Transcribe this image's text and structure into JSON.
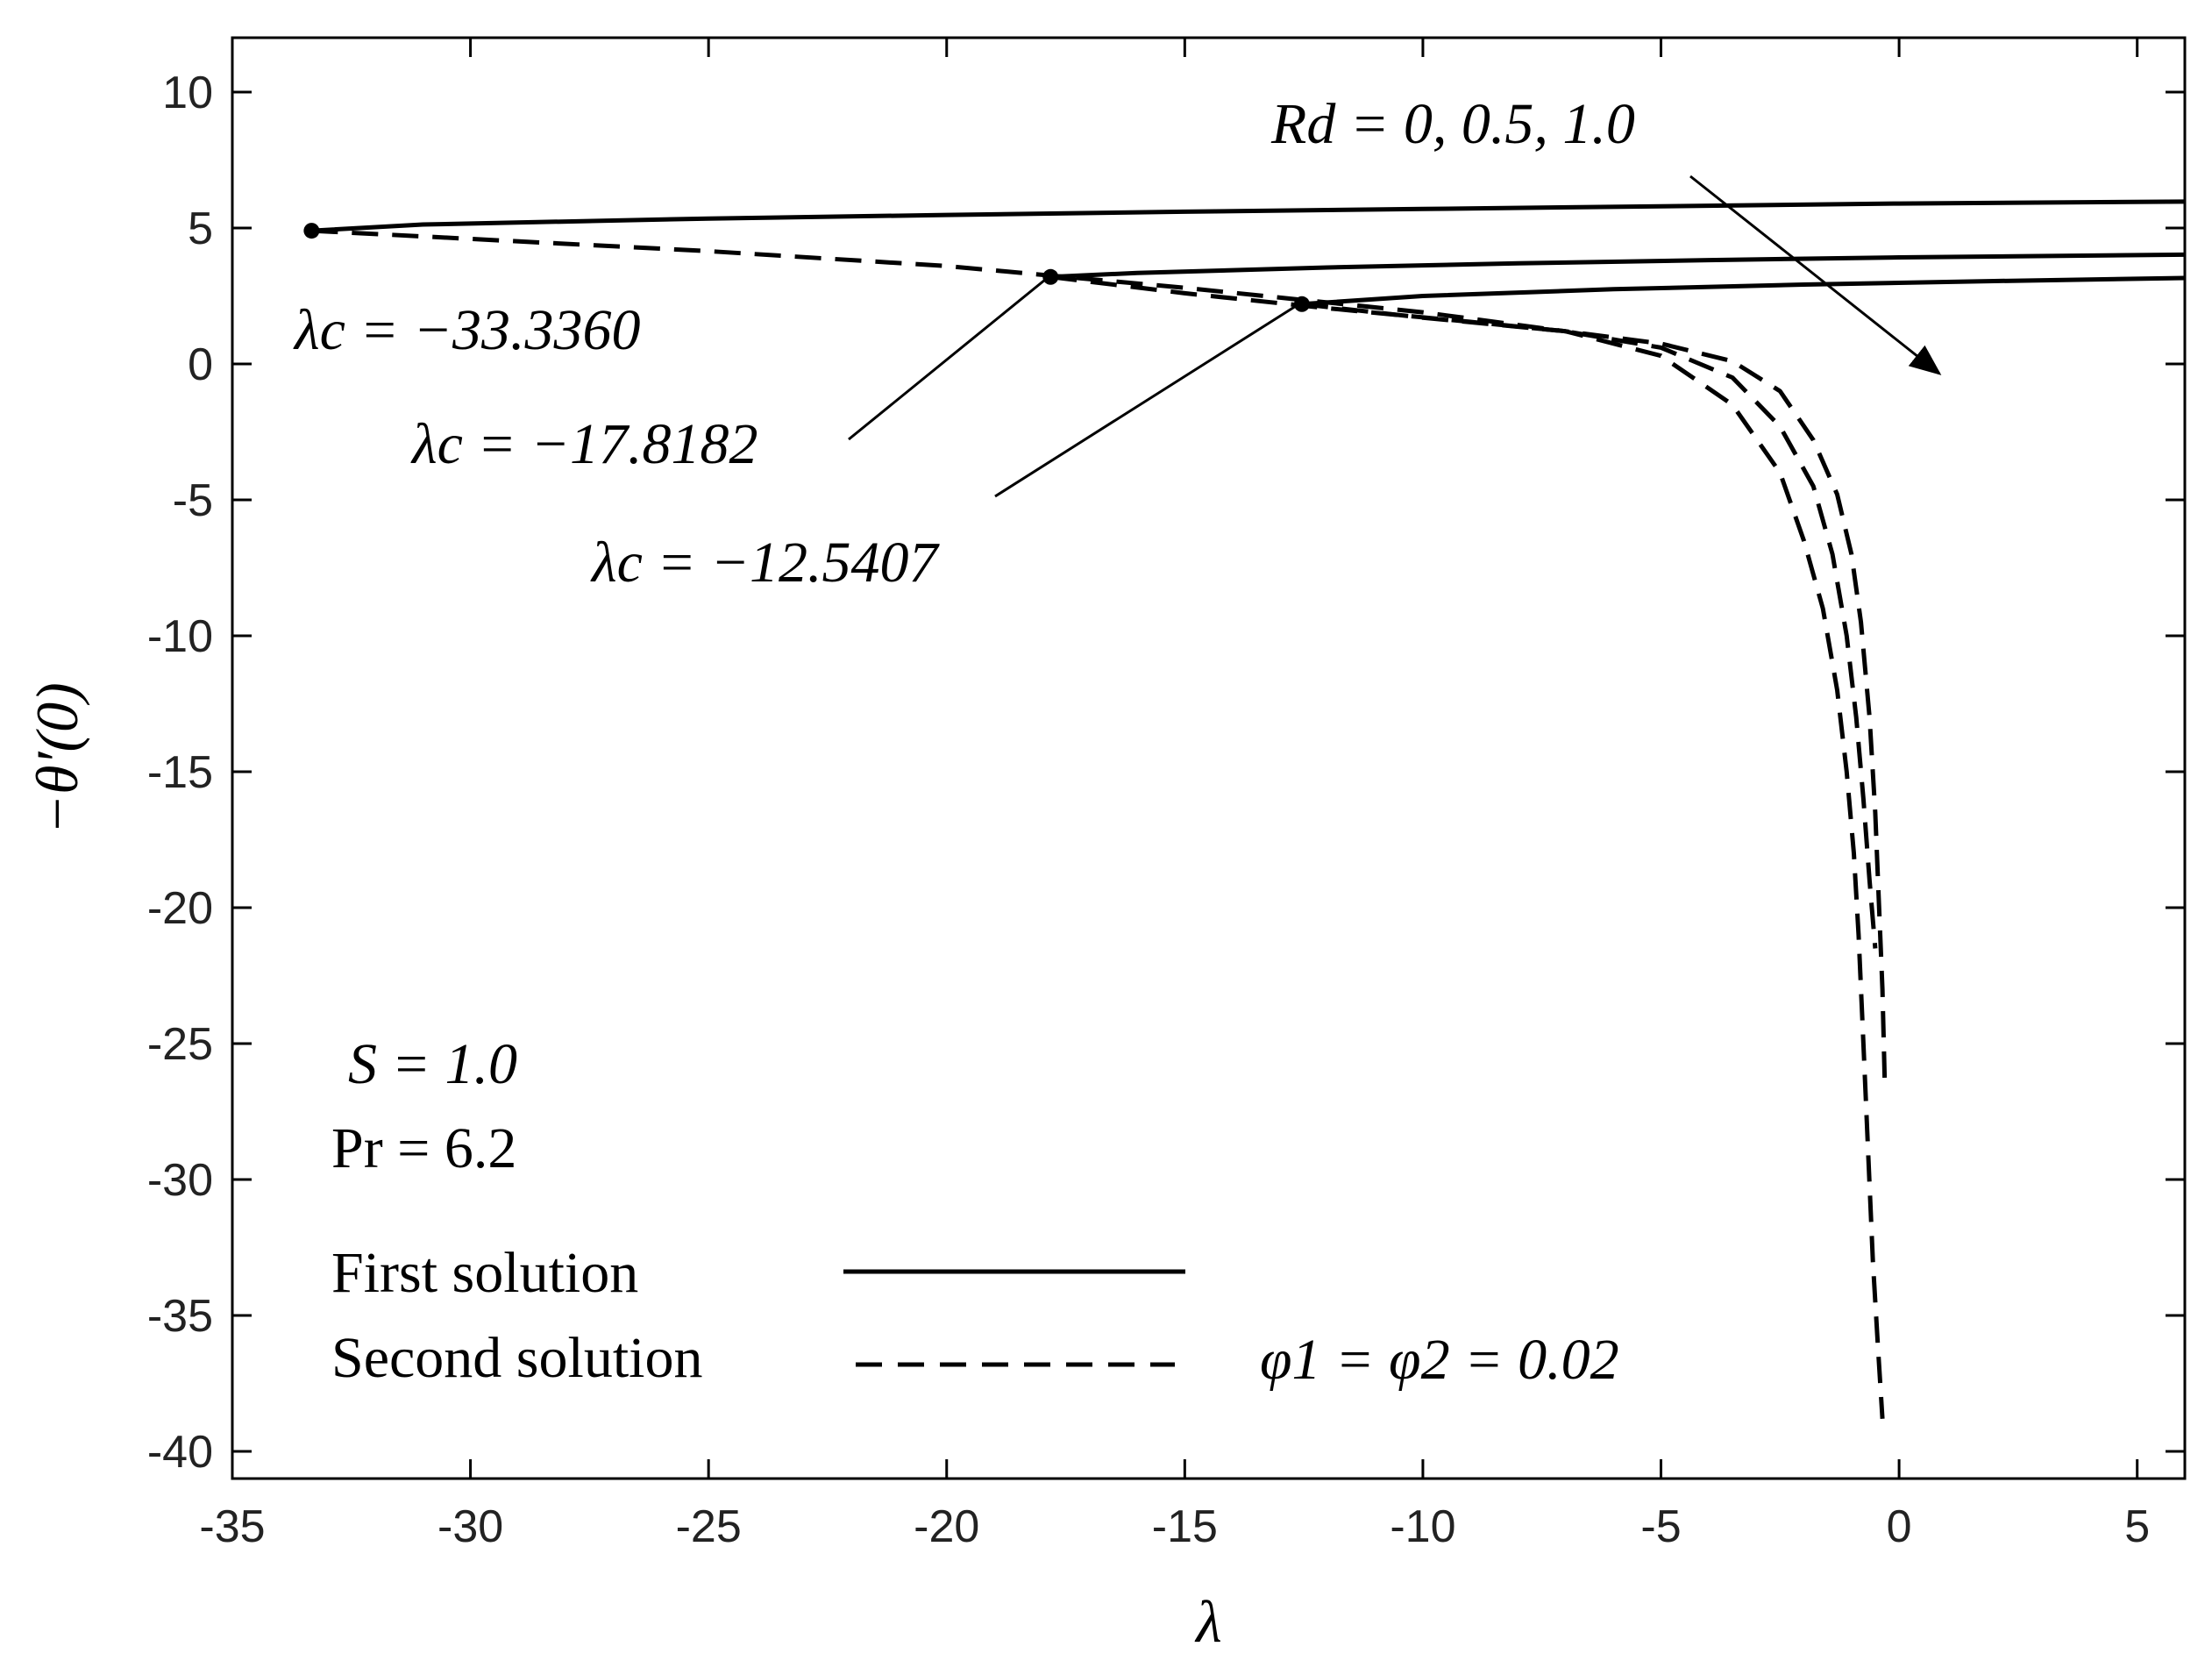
{
  "chart_data": {
    "type": "line",
    "title": "",
    "xlabel": "λ",
    "ylabel": "−θ′(0)",
    "xlim": [
      -35,
      6
    ],
    "ylim": [
      -41,
      12
    ],
    "xticks": [
      -35,
      -30,
      -25,
      -20,
      -15,
      -10,
      -5,
      0,
      5
    ],
    "yticks": [
      10,
      5,
      0,
      -5,
      -10,
      -15,
      -20,
      -25,
      -30,
      -35,
      -40
    ],
    "xtick_labels": [
      "-35",
      "-30",
      "-25",
      "-20",
      "-15",
      "-10",
      "-5",
      "0",
      "5"
    ],
    "ytick_labels": [
      "10",
      "5",
      "0",
      "-5",
      "-10",
      "-15",
      "-20",
      "-25",
      "-30",
      "-35",
      "-40"
    ],
    "grid": false,
    "series": [
      {
        "name": "First solution, Rd = 0",
        "style": "solid",
        "x": [
          -33.336,
          -31,
          -25,
          -20,
          -15,
          -10,
          -5,
          0,
          6
        ],
        "y": [
          4.9,
          5.13,
          5.35,
          5.48,
          5.6,
          5.7,
          5.8,
          5.9,
          5.97
        ]
      },
      {
        "name": "First solution, Rd = 0.5",
        "style": "solid",
        "x": [
          -17.8182,
          -16,
          -12,
          -8,
          -4,
          0,
          6
        ],
        "y": [
          3.2,
          3.35,
          3.55,
          3.7,
          3.82,
          3.92,
          4.02
        ]
      },
      {
        "name": "First solution, Rd = 1.0",
        "style": "solid",
        "x": [
          -12.5407,
          -10,
          -6,
          -2,
          2,
          6
        ],
        "y": [
          2.2,
          2.5,
          2.75,
          2.92,
          3.05,
          3.16
        ]
      },
      {
        "name": "Second solution, Rd = 0",
        "style": "dashed",
        "x": [
          -33.336,
          -30,
          -25,
          -20,
          -15,
          -10,
          -7,
          -5,
          -3.5,
          -2.5,
          -2.0,
          -1.6,
          -1.3,
          -1.1,
          -0.95,
          -0.85,
          -0.75,
          -0.65,
          -0.55,
          -0.45,
          -0.35
        ],
        "y": [
          4.9,
          4.6,
          4.15,
          3.6,
          2.8,
          1.9,
          1.2,
          0.3,
          -1.5,
          -4.0,
          -6.5,
          -9.0,
          -12.0,
          -15.0,
          -18.0,
          -21.0,
          -25.0,
          -29.0,
          -33.0,
          -36.0,
          -38.8
        ]
      },
      {
        "name": "Second solution, Rd = 0.5",
        "style": "dashed",
        "x": [
          -17.8182,
          -15,
          -12,
          -9,
          -7,
          -5,
          -3.5,
          -2.5,
          -1.8,
          -1.4,
          -1.1,
          -0.9,
          -0.75,
          -0.62,
          -0.5
        ],
        "y": [
          3.2,
          2.6,
          2.05,
          1.55,
          1.2,
          0.6,
          -0.5,
          -2.3,
          -4.5,
          -7.0,
          -10.0,
          -13.0,
          -16.0,
          -19.0,
          -21.5
        ]
      },
      {
        "name": "Second solution, Rd = 1.0",
        "style": "dashed",
        "x": [
          -12.5407,
          -10,
          -7,
          -5,
          -3.5,
          -2.5,
          -1.8,
          -1.3,
          -1.0,
          -0.8,
          -0.62,
          -0.5,
          -0.42,
          -0.35,
          -0.3
        ],
        "y": [
          2.2,
          1.7,
          1.2,
          0.75,
          0.1,
          -1.0,
          -2.8,
          -4.8,
          -7.0,
          -9.5,
          -13.0,
          -16.5,
          -20.0,
          -23.0,
          -26.5
        ]
      }
    ],
    "critical_points": [
      {
        "x": -33.336,
        "y": 4.9
      },
      {
        "x": -17.8182,
        "y": 3.2
      },
      {
        "x": -12.5407,
        "y": 2.2
      }
    ],
    "annotations": {
      "rd_label": "Rd = 0, 0.5, 1.0",
      "lambda_c_1": "λc = −33.3360",
      "lambda_c_2": "λc = −17.8182",
      "lambda_c_3": "λc = −12.5407",
      "s_label": "S = 1.0",
      "pr_label": "Pr = 6.2",
      "phi_label": "φ1 = φ2 = 0.02"
    },
    "legend": {
      "placement": "bottom-left",
      "entries": [
        {
          "label": "First solution",
          "style": "solid"
        },
        {
          "label": "Second solution",
          "style": "dashed"
        }
      ]
    }
  }
}
